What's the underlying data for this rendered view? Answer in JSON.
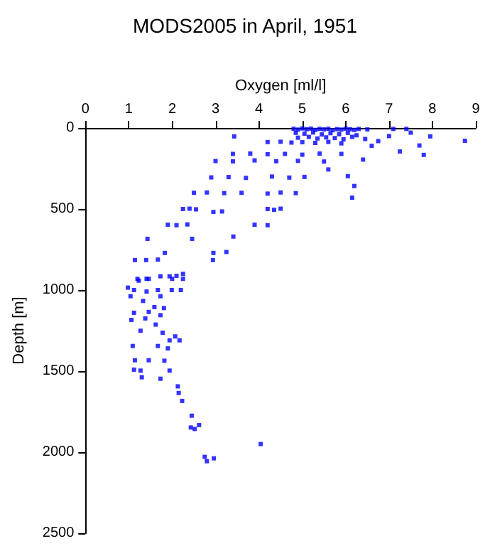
{
  "chart_data": {
    "type": "scatter",
    "title": "MODS2005 in April, 1951",
    "xlabel": "Oxygen [ml/l]",
    "ylabel": "Depth [m]",
    "xlim": [
      0,
      9
    ],
    "xticks": [
      0,
      1,
      2,
      3,
      4,
      5,
      6,
      7,
      8,
      9
    ],
    "ylim": [
      2500,
      0
    ],
    "yticks": [
      0,
      500,
      1000,
      1500,
      2000,
      2500
    ],
    "grid": false,
    "marker": "square",
    "series": [
      {
        "color": "#0000ff",
        "x": [
          8.75,
          7.8,
          7.7,
          7.95,
          7.5,
          7.4,
          7.1,
          7.0,
          7.25,
          6.75,
          6.6,
          6.4,
          6.05,
          6.2,
          6.15,
          5.6,
          3.43,
          4.8,
          4.9,
          5.0,
          5.1,
          5.2,
          5.3,
          5.4,
          5.5,
          5.6,
          5.7,
          5.8,
          5.9,
          6.0,
          6.1,
          6.2,
          6.3,
          6.5,
          4.85,
          5.05,
          5.25,
          5.45,
          5.65,
          5.85,
          6.05,
          6.25,
          4.9,
          5.15,
          5.35,
          5.55,
          5.75,
          5.95,
          6.15,
          6.45,
          4.2,
          4.5,
          4.75,
          5.0,
          5.3,
          5.6,
          5.9,
          3.4,
          3.8,
          4.2,
          4.6,
          5.0,
          5.4,
          5.9,
          3.0,
          3.4,
          3.9,
          4.4,
          4.9,
          5.5,
          2.9,
          3.3,
          3.7,
          4.3,
          4.7,
          5.05,
          2.5,
          2.8,
          3.2,
          3.6,
          4.2,
          4.5,
          4.85,
          2.25,
          2.4,
          2.55,
          4.2,
          4.35,
          4.5,
          2.95,
          3.15,
          1.9,
          2.1,
          2.35,
          3.9,
          4.2,
          1.43,
          2.46,
          3.41,
          2.95,
          3.25,
          1.83,
          1.14,
          1.4,
          1.67,
          2.94,
          1.2,
          1.46,
          2.0,
          2.25,
          0.98,
          1.23,
          1.41,
          1.73,
          1.94,
          2.1,
          2.25,
          1.12,
          1.41,
          1.67,
          1.99,
          2.2,
          1.04,
          1.73,
          1.33,
          1.59,
          1.81,
          1.46,
          1.12,
          1.73,
          1.06,
          1.38,
          1.62,
          1.27,
          1.78,
          2.07,
          1.94,
          2.17,
          1.09,
          1.67,
          1.9,
          1.14,
          1.46,
          1.82,
          1.12,
          1.27,
          1.94,
          1.3,
          1.73,
          2.13,
          2.15,
          2.23,
          2.45,
          2.43,
          2.62,
          2.52,
          4.04,
          2.75,
          2.8,
          2.96
        ],
        "values": [
          79,
          166,
          108,
          52,
          29,
          6,
          6,
          50,
          145,
          81,
          110,
          195,
          297,
          358,
          430,
          256,
          52,
          5,
          10,
          3,
          8,
          4,
          12,
          6,
          9,
          5,
          14,
          7,
          10,
          4,
          8,
          12,
          6,
          9,
          30,
          35,
          28,
          40,
          32,
          38,
          30,
          45,
          60,
          55,
          65,
          58,
          62,
          70,
          55,
          68,
          87,
          85,
          90,
          88,
          92,
          86,
          95,
          160,
          158,
          162,
          160,
          165,
          158,
          160,
          204,
          206,
          200,
          205,
          203,
          207,
          305,
          303,
          308,
          300,
          306,
          302,
          400,
          398,
          402,
          400,
          405,
          398,
          402,
          500,
          498,
          502,
          500,
          505,
          498,
          518,
          515,
          597,
          600,
          595,
          597,
          600,
          684,
          684,
          670,
          771,
          765,
          771,
          815,
          815,
          812,
          815,
          931,
          931,
          931,
          931,
          985,
          942,
          930,
          915,
          915,
          912,
          900,
          1000,
          1009,
          1000,
          1000,
          1000,
          1038,
          1038,
          1067,
          1105,
          1111,
          1135,
          1140,
          1155,
          1184,
          1175,
          1213,
          1251,
          1263,
          1286,
          1310,
          1310,
          1345,
          1345,
          1360,
          1433,
          1433,
          1436,
          1491,
          1497,
          1497,
          1538,
          1547,
          1594,
          1635,
          1684,
          1775,
          1848,
          1833,
          1857,
          1950,
          2029,
          2056,
          2038
        ]
      }
    ]
  }
}
